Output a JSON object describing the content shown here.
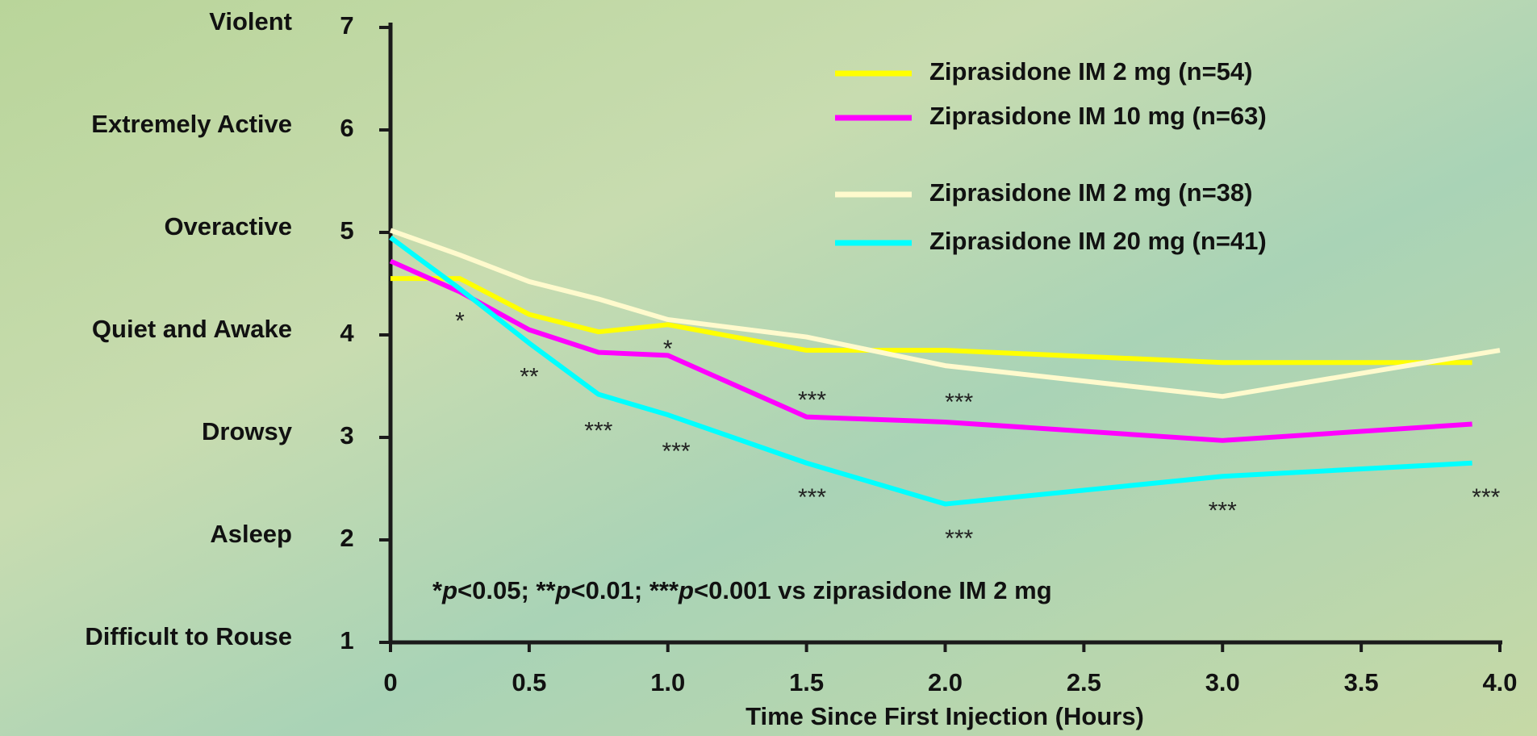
{
  "chart_data": {
    "type": "line",
    "x_label": "Time Since First Injection (Hours)",
    "xlim": [
      0,
      4
    ],
    "xticks": [
      0,
      0.5,
      {
        "value": 1,
        "label": "1.0"
      },
      1.5,
      {
        "value": 2,
        "label": "2.0"
      },
      2.5,
      {
        "value": 3,
        "label": "3.0"
      },
      3.5,
      {
        "value": 4,
        "label": "4.0"
      }
    ],
    "ylim": [
      1,
      7
    ],
    "yticks": [
      1,
      2,
      3,
      4,
      5,
      6,
      7
    ],
    "ytick_names": [
      "Difficult to Rouse",
      "Asleep",
      "Drowsy",
      "Quiet and Awake",
      "Overactive",
      "Extremely Active",
      "Violent"
    ],
    "series": [
      {
        "name": "Ziprasidone IM 2 mg (n=54)",
        "color": "#ffff00",
        "x": [
          0,
          0.25,
          0.5,
          0.75,
          1.0,
          1.5,
          2.0,
          3.0,
          3.9
        ],
        "values": [
          4.55,
          4.55,
          4.2,
          4.03,
          4.1,
          3.85,
          3.85,
          3.73,
          3.73
        ]
      },
      {
        "name": "Ziprasidone IM 10 mg (n=63)",
        "color": "#ff00ff",
        "x": [
          0,
          0.25,
          0.5,
          0.75,
          1.0,
          1.5,
          2.0,
          3.0,
          3.9
        ],
        "values": [
          4.72,
          4.42,
          4.05,
          3.83,
          3.8,
          3.2,
          3.15,
          2.97,
          3.13
        ]
      },
      {
        "name": "Ziprasidone IM 2 mg (n=38)",
        "color": "#fffacd",
        "x": [
          0,
          0.25,
          0.5,
          0.75,
          1.0,
          1.5,
          2.0,
          3.0,
          4.0
        ],
        "values": [
          5.02,
          4.78,
          4.52,
          4.35,
          4.15,
          3.98,
          3.7,
          3.4,
          3.85
        ]
      },
      {
        "name": "Ziprasidone IM 20 mg (n=41)",
        "color": "#00ffff",
        "x": [
          0,
          0.25,
          0.5,
          0.75,
          1.0,
          1.5,
          2.0,
          3.0,
          3.9
        ],
        "values": [
          4.95,
          4.45,
          3.92,
          3.42,
          3.22,
          2.75,
          2.35,
          2.62,
          2.75
        ]
      }
    ],
    "annotations": [
      {
        "text": "*",
        "x": 0.25,
        "y": 4.12
      },
      {
        "text": "**",
        "x": 0.5,
        "y": 3.58
      },
      {
        "text": "***",
        "x": 0.75,
        "y": 3.05
      },
      {
        "text": "*",
        "x": 1.0,
        "y": 3.85
      },
      {
        "text": "***",
        "x": 1.03,
        "y": 2.85
      },
      {
        "text": "***",
        "x": 1.52,
        "y": 3.35
      },
      {
        "text": "***",
        "x": 1.52,
        "y": 2.4
      },
      {
        "text": "***",
        "x": 2.05,
        "y": 3.33
      },
      {
        "text": "***",
        "x": 2.05,
        "y": 2.0
      },
      {
        "text": "***",
        "x": 3.0,
        "y": 2.27
      },
      {
        "text": "***",
        "x": 3.95,
        "y": 2.4
      }
    ],
    "footnote": [
      "*",
      "p",
      "<0.05; **",
      "p",
      "<0.01; ***",
      "p",
      "<0.001 vs ziprasidone IM 2 mg"
    ]
  }
}
